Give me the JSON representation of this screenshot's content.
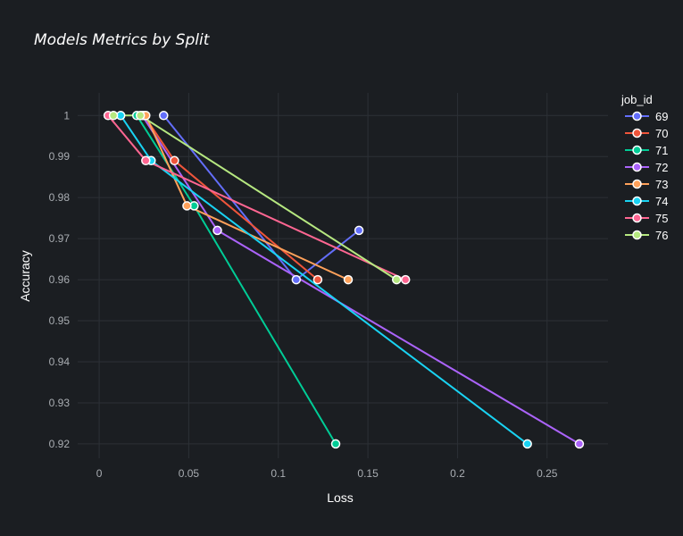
{
  "chart_data": {
    "type": "line",
    "title": "Models Metrics by Split",
    "xlabel": "Loss",
    "ylabel": "Accuracy",
    "xlim": [
      -0.012,
      0.284
    ],
    "ylim": [
      0.9165,
      1.0055
    ],
    "x_ticks": [
      0,
      0.05,
      0.1,
      0.15,
      0.2,
      0.25
    ],
    "x_tick_labels": [
      "0",
      "0.05",
      "0.1",
      "0.15",
      "0.2",
      "0.25"
    ],
    "y_ticks": [
      0.92,
      0.93,
      0.94,
      0.95,
      0.96,
      0.97,
      0.98,
      0.99,
      1
    ],
    "y_tick_labels": [
      "0.92",
      "0.93",
      "0.94",
      "0.95",
      "0.96",
      "0.97",
      "0.98",
      "0.99",
      "1"
    ],
    "grid": true,
    "legend_title": "job_id",
    "legend_position": "right",
    "series": [
      {
        "name": "69",
        "color": "#636efa",
        "points": [
          [
            0.036,
            1.0
          ],
          [
            0.11,
            0.96
          ],
          [
            0.145,
            0.972
          ]
        ]
      },
      {
        "name": "70",
        "color": "#ef553b",
        "points": [
          [
            0.025,
            1.0
          ],
          [
            0.042,
            0.989
          ],
          [
            0.122,
            0.96
          ]
        ]
      },
      {
        "name": "71",
        "color": "#00cc96",
        "points": [
          [
            0.021,
            1.0
          ],
          [
            0.053,
            0.978
          ],
          [
            0.132,
            0.92
          ]
        ]
      },
      {
        "name": "72",
        "color": "#ab63fa",
        "points": [
          [
            0.024,
            1.0
          ],
          [
            0.066,
            0.972
          ],
          [
            0.268,
            0.92
          ]
        ]
      },
      {
        "name": "73",
        "color": "#ffa15a",
        "points": [
          [
            0.026,
            1.0
          ],
          [
            0.049,
            0.978
          ],
          [
            0.139,
            0.96
          ]
        ]
      },
      {
        "name": "74",
        "color": "#19d3f3",
        "points": [
          [
            0.012,
            1.0
          ],
          [
            0.029,
            0.989
          ],
          [
            0.239,
            0.92
          ]
        ]
      },
      {
        "name": "75",
        "color": "#ff6692",
        "points": [
          [
            0.005,
            1.0
          ],
          [
            0.026,
            0.989
          ],
          [
            0.171,
            0.96
          ]
        ]
      },
      {
        "name": "76",
        "color": "#b6e880",
        "points": [
          [
            0.008,
            1.0
          ],
          [
            0.023,
            1.0
          ],
          [
            0.166,
            0.96
          ]
        ]
      }
    ]
  }
}
